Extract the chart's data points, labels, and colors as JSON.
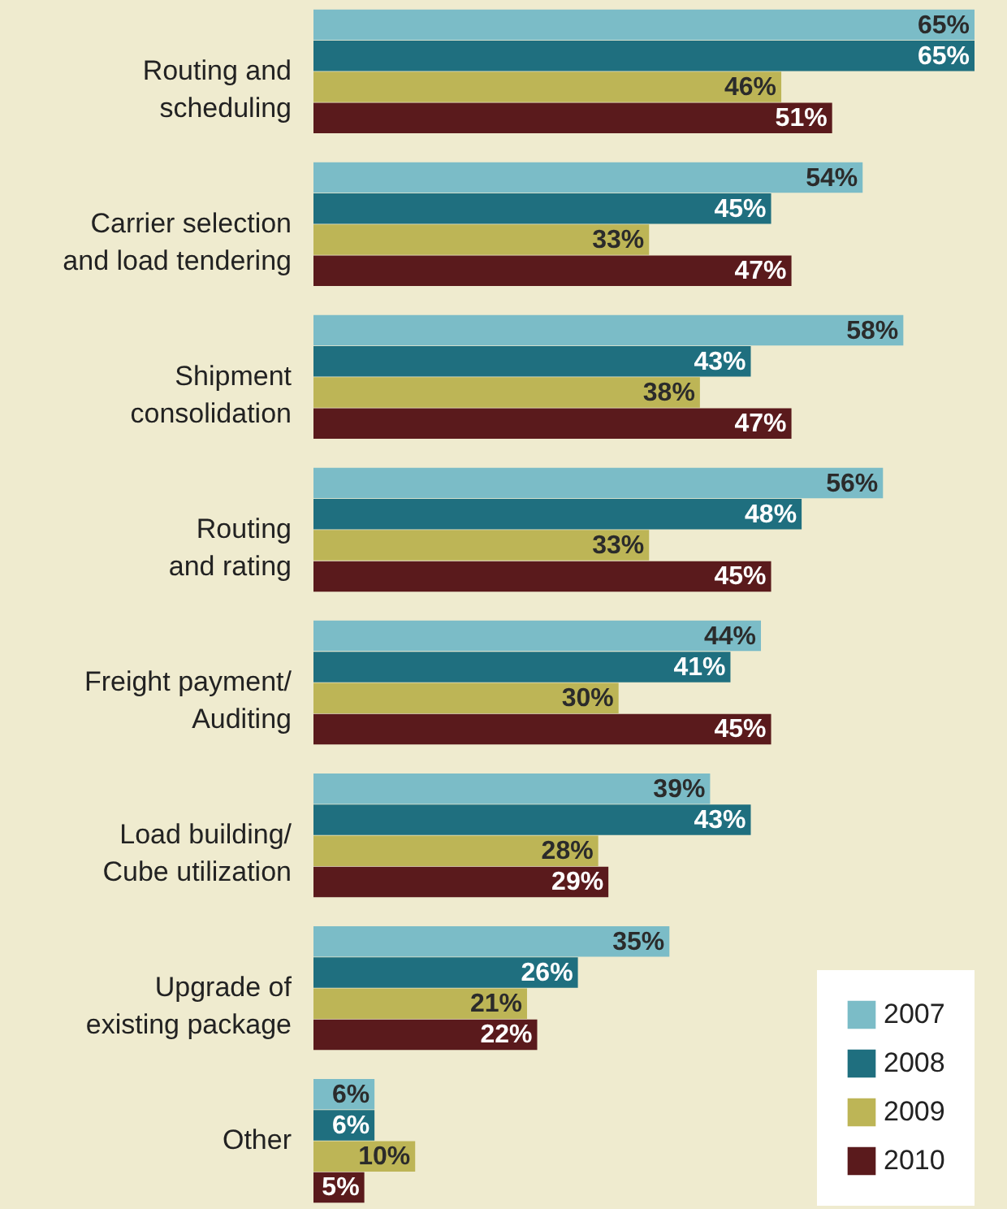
{
  "chart_data": {
    "type": "bar",
    "orientation": "horizontal",
    "legend": "bottom right",
    "categories": [
      "Routing and\nscheduling",
      "Carrier selection\nand load tendering",
      "Shipment\nconsolidation",
      "Routing\nand rating",
      "Freight payment/\nAuditing",
      "Load building/\nCube utilization",
      "Upgrade of\nexisting package",
      "Other"
    ],
    "series": [
      {
        "name": "2007",
        "color": "#7bbcc7",
        "values": [
          65,
          54,
          58,
          56,
          44,
          39,
          35,
          6
        ],
        "value_labels": [
          "65%",
          "54%",
          "58%",
          "56%",
          "44%",
          "39%",
          "35%",
          "6%"
        ]
      },
      {
        "name": "2008",
        "color": "#1f6f7f",
        "values": [
          65,
          45,
          43,
          48,
          41,
          43,
          26,
          6
        ],
        "value_labels": [
          "65%",
          "45%",
          "43%",
          "48%",
          "41%",
          "43%",
          "26%",
          "6%"
        ]
      },
      {
        "name": "2009",
        "color": "#bdb556",
        "values": [
          46,
          33,
          38,
          33,
          30,
          28,
          21,
          10
        ],
        "value_labels": [
          "46%",
          "33%",
          "38%",
          "33%",
          "30%",
          "28%",
          "21%",
          "10%"
        ]
      },
      {
        "name": "2010",
        "color": "#5a1a1c",
        "values": [
          51,
          47,
          47,
          45,
          45,
          29,
          22,
          5
        ],
        "value_labels": [
          "51%",
          "47%",
          "47%",
          "45%",
          "45%",
          "29%",
          "22%",
          "5%"
        ]
      }
    ]
  }
}
